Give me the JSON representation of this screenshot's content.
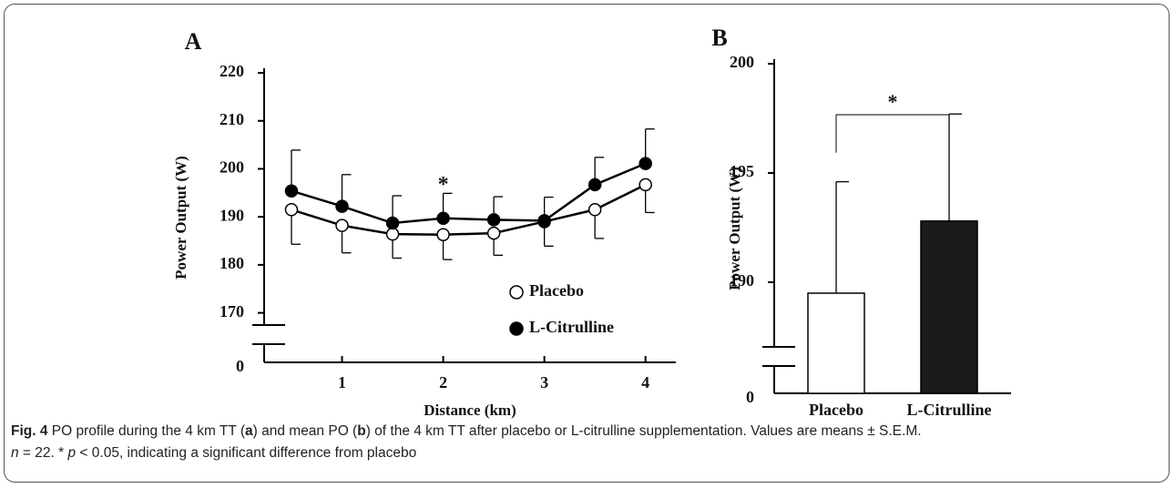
{
  "chart_data": [
    {
      "type": "line",
      "panel_label": "A",
      "ylabel": "Power Output (W)",
      "xlabel": "Distance (km)",
      "x": [
        0.5,
        1,
        1.5,
        2,
        2.5,
        3,
        3.5,
        4
      ],
      "series": [
        {
          "name": "Placebo",
          "color": "#000000",
          "marker_fill": "#ffffff",
          "error_direction": "down",
          "values": [
            191.5,
            188.2,
            186.4,
            186.3,
            186.6,
            189.0,
            191.5,
            196.7
          ],
          "errors": [
            7.2,
            5.7,
            5.0,
            5.2,
            4.6,
            5.1,
            6.0,
            5.8
          ]
        },
        {
          "name": "L-Citrulline",
          "color": "#000000",
          "marker_fill": "#000000",
          "error_direction": "up",
          "values": [
            195.4,
            192.2,
            188.7,
            189.7,
            189.4,
            189.2,
            196.7,
            201.1
          ],
          "errors": [
            8.5,
            6.6,
            5.7,
            5.2,
            4.8,
            4.9,
            5.7,
            7.2
          ]
        }
      ],
      "xlim": [
        0.23,
        4.3
      ],
      "xticks": [
        1,
        2,
        3,
        4
      ],
      "ylim": [
        165,
        220
      ],
      "yticks": [
        170,
        180,
        190,
        200,
        210,
        220
      ],
      "ybreak": 0,
      "annotations": [
        {
          "text": "*",
          "x": 2
        }
      ]
    },
    {
      "type": "bar",
      "panel_label": "B",
      "ylabel": "Power Output (W)",
      "categories": [
        "Placebo",
        "L-Citrulline"
      ],
      "values": [
        189.5,
        192.8
      ],
      "errors": [
        5.1,
        4.9
      ],
      "colors": [
        "#ffffff",
        "#1a1a1a"
      ],
      "edge_color": "#000000",
      "ylim": [
        186.5,
        200
      ],
      "yticks": [
        190,
        195,
        200
      ],
      "ybreak": 0,
      "annotations": [
        {
          "text": "*"
        }
      ]
    }
  ],
  "caption": {
    "label": "Fig. 4",
    "parts": [
      "PO profile during the 4 km TT (",
      "a",
      ") and mean PO (",
      "b",
      ") of the 4 km TT after placebo or L-citrulline supplementation. Values are means ± S.E.M.",
      "n",
      " = 22. * ",
      "p",
      " < 0.05, indicating a significant difference from placebo"
    ]
  }
}
